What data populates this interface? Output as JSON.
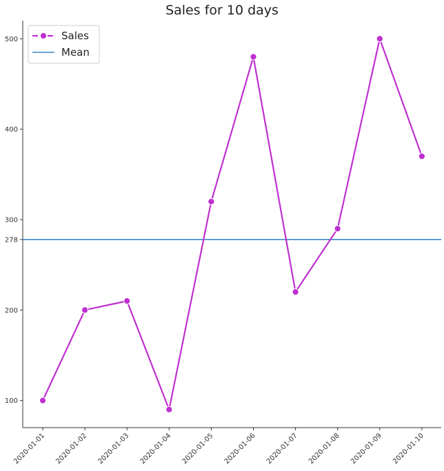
{
  "chart_data": {
    "type": "line",
    "title": "Sales for 10 days",
    "xlabel": "",
    "ylabel": "",
    "x": [
      "2020-01-01",
      "2020-01-02",
      "2020-01-03",
      "2020-01-04",
      "2020-01-05",
      "2020-01-06",
      "2020-01-07",
      "2020-01-08",
      "2020-01-09",
      "2020-01-10"
    ],
    "series": [
      {
        "name": "Sales",
        "values": [
          100,
          200,
          210,
          90,
          320,
          480,
          220,
          290,
          500,
          370
        ],
        "color": "#bf2fd0",
        "marker": "circle",
        "style": "solid"
      }
    ],
    "mean_line": {
      "name": "Mean",
      "value": 278,
      "color": "#3a87c9"
    },
    "yticks": [
      100,
      200,
      278,
      300,
      400,
      500
    ],
    "ylim": [
      70,
      520
    ],
    "grid": false,
    "legend_position": "top-left",
    "legend_entries": [
      "Sales",
      "Mean"
    ]
  }
}
